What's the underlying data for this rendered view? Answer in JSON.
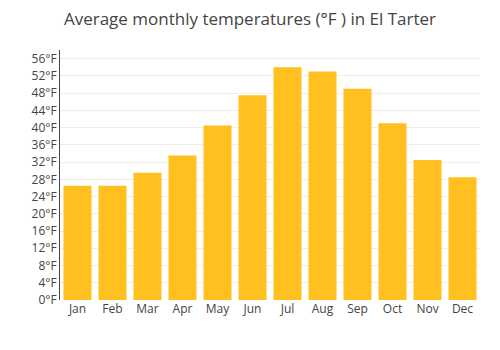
{
  "chart_data": {
    "type": "bar",
    "title": "Average monthly temperatures (°F ) in El Tarter",
    "categories": [
      "Jan",
      "Feb",
      "Mar",
      "Apr",
      "May",
      "Jun",
      "Jul",
      "Aug",
      "Sep",
      "Oct",
      "Nov",
      "Dec"
    ],
    "values": [
      26.5,
      26.5,
      29.5,
      33.5,
      40.5,
      47.5,
      54,
      53,
      49,
      41,
      32.5,
      28.5
    ],
    "color": "#FFC020",
    "ylim": [
      0,
      58
    ],
    "yticks": [
      {
        "value": 0,
        "label": "0°F"
      },
      {
        "value": 4,
        "label": "4°F"
      },
      {
        "value": 8,
        "label": "8°F"
      },
      {
        "value": 12,
        "label": "12°F"
      },
      {
        "value": 16,
        "label": "16°F"
      },
      {
        "value": 20,
        "label": "20°F"
      },
      {
        "value": 24,
        "label": "24°F"
      },
      {
        "value": 28,
        "label": "28°F"
      },
      {
        "value": 32,
        "label": "32°F"
      },
      {
        "value": 36,
        "label": "36°F"
      },
      {
        "value": 40,
        "label": "40°F"
      },
      {
        "value": 44,
        "label": "44°F"
      },
      {
        "value": 48,
        "label": "48°F"
      },
      {
        "value": 52,
        "label": "52°F"
      },
      {
        "value": 56,
        "label": "56°F"
      }
    ],
    "grid": true
  }
}
